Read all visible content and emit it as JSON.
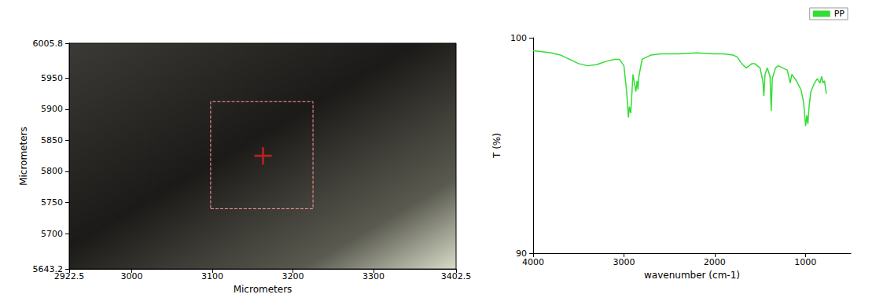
{
  "chart_data": [
    {
      "type": "scatter",
      "x_label": "Micrometers",
      "y_label": "Micrometers",
      "xlim": [
        2922.5,
        3402.5
      ],
      "xticks": [
        2922.5,
        3000,
        3100,
        3200,
        3300,
        3402.5
      ],
      "ylim": [
        5643.2,
        6005.8
      ],
      "yticks": [
        5643.2,
        5700,
        5750,
        5800,
        5850,
        5900,
        5950,
        6005.8
      ],
      "x": [
        3163
      ],
      "values": [
        5825
      ],
      "marker": "cross",
      "color": "#e02020",
      "selection_box": {
        "x": [
          3098,
          3225
        ],
        "y": [
          5740,
          5912
        ]
      }
    },
    {
      "type": "line",
      "x_label": "wavenumber (cm-1)",
      "y_label": "T (%)",
      "xlim": [
        4000,
        500
      ],
      "xticks": [
        4000,
        3000,
        2000,
        1000
      ],
      "ylim": [
        90,
        100
      ],
      "yticks": [
        90,
        100
      ],
      "legend": "top-right",
      "series": [
        {
          "name": "PP",
          "color": "#33dd33",
          "x": [
            4000,
            3900,
            3800,
            3700,
            3600,
            3500,
            3400,
            3300,
            3200,
            3100,
            3050,
            3000,
            2970,
            2955,
            2950,
            2940,
            2925,
            2915,
            2900,
            2880,
            2868,
            2855,
            2845,
            2835,
            2800,
            2700,
            2600,
            2400,
            2200,
            2000,
            1900,
            1800,
            1750,
            1720,
            1680,
            1650,
            1620,
            1590,
            1560,
            1500,
            1470,
            1458,
            1445,
            1420,
            1390,
            1377,
            1365,
            1330,
            1300,
            1250,
            1200,
            1168,
            1150,
            1100,
            1050,
            1020,
            998,
            985,
            973,
            960,
            940,
            900,
            870,
            840,
            820,
            808,
            790,
            770
          ],
          "values": [
            99.4,
            99.35,
            99.3,
            99.2,
            99.0,
            98.8,
            98.7,
            98.75,
            98.9,
            99.0,
            99.0,
            98.7,
            97.5,
            96.6,
            96.3,
            96.8,
            96.5,
            97.2,
            98.3,
            97.8,
            97.5,
            98.0,
            97.6,
            98.2,
            99.0,
            99.2,
            99.25,
            99.25,
            99.3,
            99.25,
            99.25,
            99.2,
            99.1,
            98.9,
            98.7,
            98.6,
            98.7,
            98.8,
            98.8,
            98.6,
            98.0,
            97.3,
            98.3,
            98.6,
            98.2,
            96.6,
            98.1,
            98.6,
            98.7,
            98.6,
            98.5,
            97.9,
            98.3,
            98.0,
            97.6,
            97.0,
            95.9,
            96.4,
            96.0,
            96.8,
            97.5,
            97.9,
            98.1,
            97.9,
            98.2,
            97.9,
            98.0,
            97.4
          ]
        }
      ]
    }
  ]
}
